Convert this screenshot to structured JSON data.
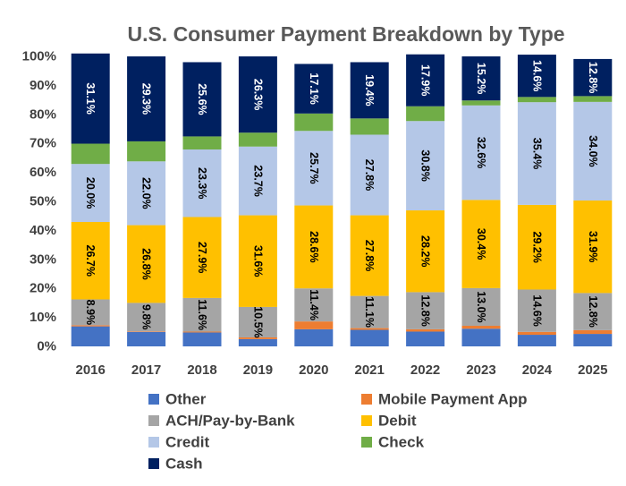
{
  "chart_data": {
    "type": "bar",
    "stacked": true,
    "title": "U.S. Consumer Payment Breakdown by Type",
    "categories": [
      "2016",
      "2017",
      "2018",
      "2019",
      "2020",
      "2021",
      "2022",
      "2023",
      "2024",
      "2025"
    ],
    "ylim": [
      0,
      100
    ],
    "ytick_labels": [
      "0%",
      "10%",
      "20%",
      "30%",
      "40%",
      "50%",
      "60%",
      "70%",
      "80%",
      "90%",
      "100%"
    ],
    "grid": false,
    "legend_position": "bottom",
    "series": [
      {
        "name": "Other",
        "color": "#4472C4",
        "label_color": "#000000",
        "values": [
          6.9,
          5.0,
          4.8,
          2.5,
          5.9,
          5.7,
          5.1,
          6.1,
          4.0,
          4.3
        ],
        "labels": [
          null,
          null,
          null,
          null,
          null,
          null,
          null,
          null,
          null,
          null
        ]
      },
      {
        "name": "Mobile Payment App",
        "color": "#ED7D31",
        "label_color": "#000000",
        "values": [
          0.4,
          0.2,
          0.3,
          0.6,
          2.7,
          0.6,
          0.8,
          1.0,
          1.0,
          1.3
        ],
        "labels": [
          null,
          null,
          null,
          null,
          null,
          null,
          null,
          null,
          null,
          null
        ]
      },
      {
        "name": "ACH/Pay-by-Bank",
        "color": "#A5A5A5",
        "label_color": "#000000",
        "values": [
          8.9,
          9.8,
          11.6,
          10.5,
          11.4,
          11.1,
          12.8,
          13.0,
          14.6,
          12.8
        ],
        "labels": [
          "8.9%",
          "9.8%",
          "11.6%",
          "10.5%",
          "11.4%",
          "11.1%",
          "12.8%",
          "13.0%",
          "14.6%",
          "12.8%"
        ]
      },
      {
        "name": "Debit",
        "color": "#FFC000",
        "label_color": "#000000",
        "values": [
          26.7,
          26.8,
          27.9,
          31.6,
          28.6,
          27.8,
          28.2,
          30.4,
          29.2,
          31.9
        ],
        "labels": [
          "26.7%",
          "26.8%",
          "27.9%",
          "31.6%",
          "28.6%",
          "27.8%",
          "28.2%",
          "30.4%",
          "29.2%",
          "31.9%"
        ]
      },
      {
        "name": "Credit",
        "color": "#B4C7E7",
        "label_color": "#000000",
        "values": [
          20.0,
          22.0,
          23.3,
          23.7,
          25.7,
          27.8,
          30.8,
          32.6,
          35.4,
          34.0
        ],
        "labels": [
          "20.0%",
          "22.0%",
          "23.3%",
          "23.7%",
          "25.7%",
          "27.8%",
          "30.8%",
          "32.6%",
          "35.4%",
          "34.0%"
        ]
      },
      {
        "name": "Check",
        "color": "#70AD47",
        "label_color": "#000000",
        "values": [
          7.0,
          6.9,
          4.5,
          4.8,
          6.0,
          5.6,
          5.1,
          1.7,
          1.8,
          2.0
        ],
        "labels": [
          null,
          null,
          null,
          null,
          null,
          null,
          null,
          null,
          null,
          null
        ]
      },
      {
        "name": "Cash",
        "color": "#002060",
        "label_color": "#ffffff",
        "values": [
          31.1,
          29.3,
          25.6,
          26.3,
          17.1,
          19.4,
          17.9,
          15.2,
          14.6,
          12.8
        ],
        "labels": [
          "31.1%",
          "29.3%",
          "25.6%",
          "26.3%",
          "17.1%",
          "19.4%",
          "17.9%",
          "15.2%",
          "14.6%",
          "12.8%"
        ]
      }
    ],
    "legend_order": [
      "Other",
      "Mobile Payment App",
      "ACH/Pay-by-Bank",
      "Debit",
      "Credit",
      "Check",
      "Cash"
    ]
  }
}
